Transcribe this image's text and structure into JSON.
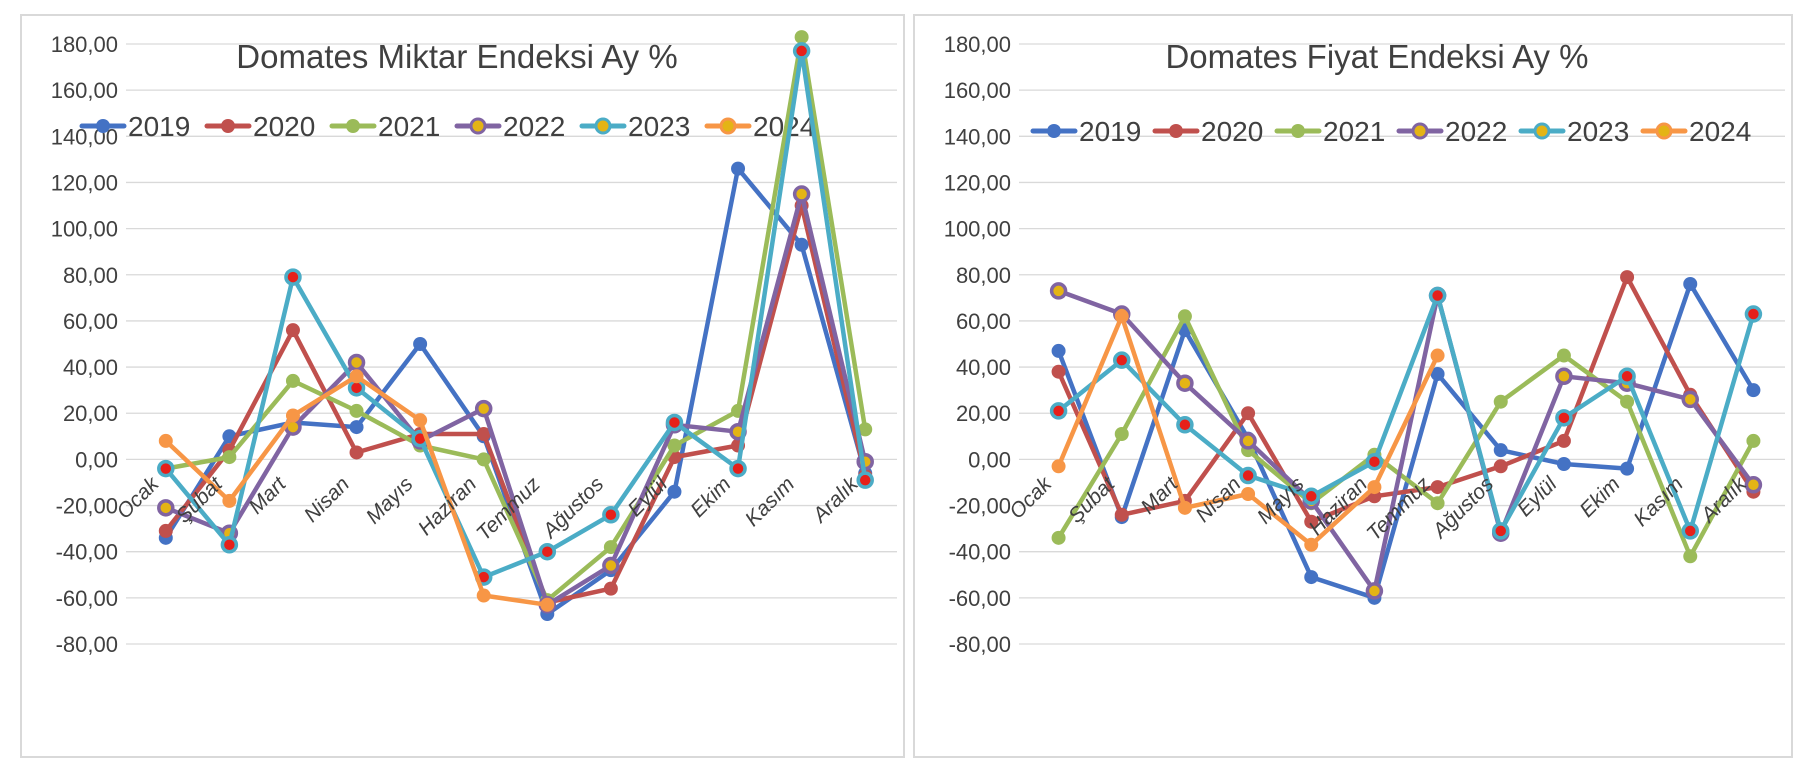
{
  "chart_data": [
    {
      "type": "line",
      "title": "Domates Miktar Endeksi Ay  %",
      "categories": [
        "Ocak",
        "Şubat",
        "Mart",
        "Nisan",
        "Mayıs",
        "Haziran",
        "Temmuz",
        "Ağustos",
        "Eylül",
        "Ekim",
        "Kasım",
        "Aralık"
      ],
      "ylim": [
        -80,
        180
      ],
      "yticks": [
        "180,00",
        "160,00",
        "140,00",
        "120,00",
        "100,00",
        "80,00",
        "60,00",
        "40,00",
        "20,00",
        "0,00",
        "-20,00",
        "-40,00",
        "-60,00",
        "-80,00"
      ],
      "grid": true,
      "legend_position": "top",
      "series": [
        {
          "name": "2019",
          "color": "#4472C4",
          "values": [
            -34,
            10,
            16,
            14,
            50,
            10,
            -67,
            -48,
            -14,
            126,
            93,
            -6
          ]
        },
        {
          "name": "2020",
          "color": "#C0504D",
          "values": [
            -31,
            4,
            56,
            3,
            11,
            11,
            -62,
            -56,
            1,
            6,
            110,
            -7
          ]
        },
        {
          "name": "2021",
          "color": "#9BBB59",
          "values": [
            -4,
            1,
            34,
            21,
            6,
            0,
            -61,
            -38,
            6,
            21,
            183,
            13
          ]
        },
        {
          "name": "2022",
          "color": "#8064A2",
          "values": [
            -21,
            -32,
            14,
            42,
            8,
            22,
            -63,
            -46,
            15,
            12,
            115,
            -1
          ]
        },
        {
          "name": "2023",
          "color": "#4BACC6",
          "values": [
            -4,
            -37,
            79,
            31,
            9,
            -51,
            -40,
            -24,
            16,
            -4,
            177,
            -9
          ]
        },
        {
          "name": "2024",
          "color": "#F79646",
          "values": [
            8,
            -18,
            19,
            36,
            17,
            -59,
            -63,
            null,
            null,
            null,
            null,
            null
          ]
        }
      ]
    },
    {
      "type": "line",
      "title": "Domates Fiyat Endeksi Ay %",
      "categories": [
        "Ocak",
        "Şubat",
        "Mart",
        "Nisan",
        "Mayıs",
        "Haziran",
        "Temmuz",
        "Ağustos",
        "Eylül",
        "Ekim",
        "Kasım",
        "Aralık"
      ],
      "ylim": [
        -80,
        180
      ],
      "yticks": [
        "180,00",
        "160,00",
        "140,00",
        "120,00",
        "100,00",
        "80,00",
        "60,00",
        "40,00",
        "20,00",
        "0,00",
        "-20,00",
        "-40,00",
        "-60,00",
        "-80,00"
      ],
      "grid": true,
      "legend_position": "top",
      "series": [
        {
          "name": "2019",
          "color": "#4472C4",
          "values": [
            47,
            -25,
            56,
            9,
            -51,
            -60,
            37,
            4,
            -2,
            -4,
            76,
            30
          ]
        },
        {
          "name": "2020",
          "color": "#C0504D",
          "values": [
            38,
            -24,
            -18,
            20,
            -27,
            -16,
            -12,
            -3,
            8,
            79,
            28,
            -14
          ]
        },
        {
          "name": "2021",
          "color": "#9BBB59",
          "values": [
            -34,
            11,
            62,
            4,
            -19,
            2,
            -19,
            25,
            45,
            25,
            -42,
            8
          ]
        },
        {
          "name": "2022",
          "color": "#8064A2",
          "values": [
            73,
            63,
            33,
            8,
            -18,
            -57,
            71,
            -32,
            36,
            33,
            26,
            -11
          ]
        },
        {
          "name": "2023",
          "color": "#4BACC6",
          "values": [
            21,
            43,
            15,
            -7,
            -16,
            -1,
            71,
            -31,
            18,
            36,
            -31,
            63
          ]
        },
        {
          "name": "2024",
          "color": "#F79646",
          "values": [
            -3,
            62,
            -21,
            -15,
            -37,
            -12,
            45,
            null,
            null,
            null,
            null,
            null
          ]
        }
      ]
    }
  ]
}
